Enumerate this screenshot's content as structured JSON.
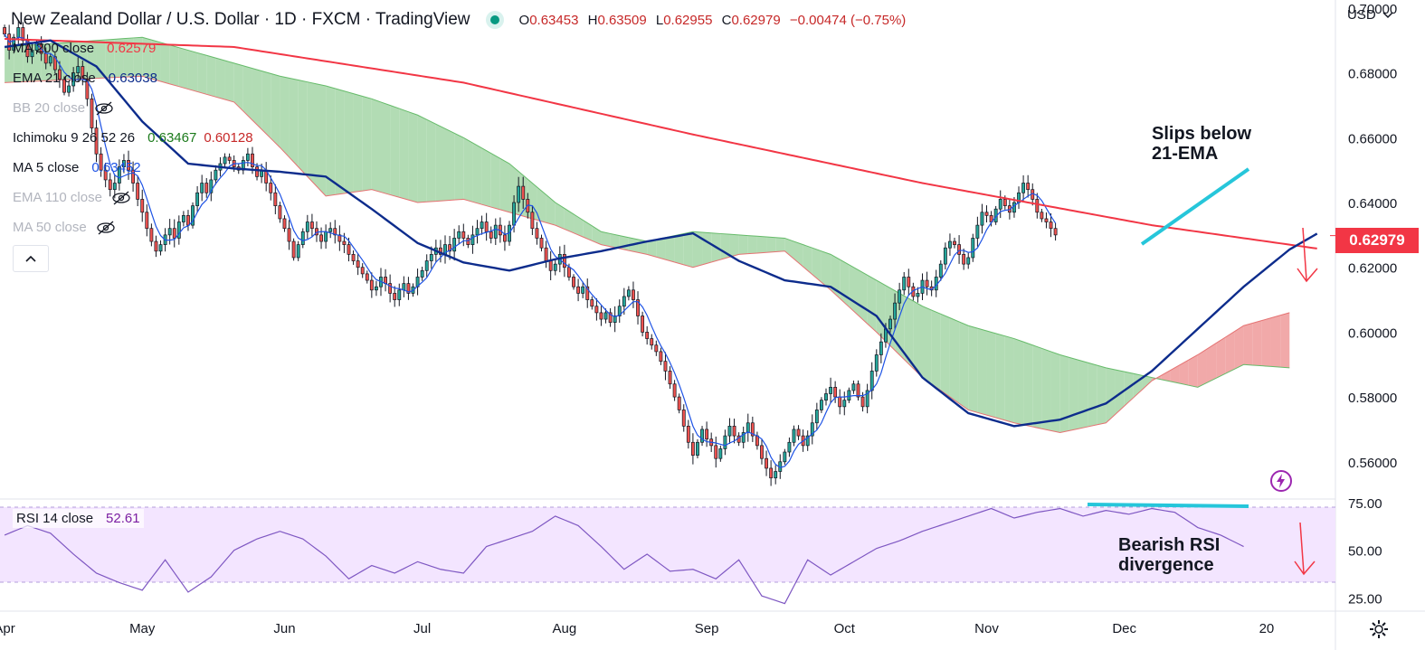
{
  "header": {
    "title": "New Zealand Dollar / U.S. Dollar · 1D · FXCM · TradingView",
    "ohlc": [
      {
        "key": "O",
        "value": "0.63453"
      },
      {
        "key": "H",
        "value": "0.63509"
      },
      {
        "key": "L",
        "value": "0.62955"
      },
      {
        "key": "C",
        "value": "0.62979"
      }
    ],
    "change": "−0.00474 (−0.75%)"
  },
  "currency_label": "USD",
  "legend": [
    {
      "label": "MA 200 close",
      "value": "0.62579",
      "color": "#f23645",
      "hidden": false
    },
    {
      "label": "EMA 21 close",
      "value": "0.63038",
      "color": "#0d2c8c",
      "hidden": false
    },
    {
      "label": "BB 20 close",
      "value": "",
      "color": "#b2b5be",
      "hidden": true
    },
    {
      "label": "Ichimoku 9 26 52 26",
      "value": "0.63467",
      "value2": "0.60128",
      "color": "#1b7a1b",
      "color2": "#c62828",
      "hidden": false
    },
    {
      "label": "MA 5 close",
      "value": "0.63452",
      "color": "#1e53e5",
      "hidden": false
    },
    {
      "label": "EMA 110 close",
      "value": "",
      "color": "#b2b5be",
      "hidden": true
    },
    {
      "label": "MA 50 close",
      "value": "",
      "color": "#b2b5be",
      "hidden": true
    }
  ],
  "last_price": "0.62979",
  "rsi_legend": {
    "label": "RSI 14 close",
    "value": "52.61"
  },
  "annotations": {
    "top": [
      "Slips below",
      "21-EMA"
    ],
    "bottom": [
      "Bearish RSI",
      "divergence"
    ]
  },
  "colors": {
    "up": "#26a69a",
    "down": "#ef5350",
    "ma200": "#f23645",
    "ema21": "#0d2c8c",
    "ma5": "#1e53e5",
    "cloud_bull": "#a5d6a7",
    "cloud_bear": "#ef9a9a",
    "rsi": "#7e57c2",
    "trendline": "#26c6da"
  },
  "chart_data": [
    {
      "type": "candlestick",
      "title": "New Zealand Dollar / U.S. Dollar · 1D · FXCM · TradingView",
      "y_ticks": [
        "0.70000",
        "0.68000",
        "0.66000",
        "0.64000",
        "0.62000",
        "0.60000",
        "0.58000",
        "0.56000"
      ],
      "ylim": [
        0.5485,
        0.7025
      ],
      "x_ticks": [
        "Apr",
        "May",
        "Jun",
        "Jul",
        "Aug",
        "Sep",
        "Oct",
        "Nov",
        "Dec",
        "20"
      ],
      "x_tick_days": [
        0,
        30,
        61,
        91,
        122,
        153,
        183,
        214,
        244,
        275
      ],
      "xlim_days": [
        -1,
        290
      ],
      "closes": [
        0.692,
        0.687,
        0.691,
        0.694,
        0.69,
        0.685,
        0.687,
        0.689,
        0.686,
        0.683,
        0.685,
        0.681,
        0.678,
        0.674,
        0.676,
        0.68,
        0.682,
        0.678,
        0.672,
        0.663,
        0.655,
        0.65,
        0.647,
        0.644,
        0.646,
        0.651,
        0.653,
        0.65,
        0.646,
        0.641,
        0.637,
        0.632,
        0.628,
        0.625,
        0.627,
        0.63,
        0.632,
        0.629,
        0.634,
        0.636,
        0.633,
        0.639,
        0.643,
        0.646,
        0.643,
        0.647,
        0.65,
        0.652,
        0.654,
        0.653,
        0.651,
        0.65,
        0.653,
        0.655,
        0.651,
        0.648,
        0.65,
        0.646,
        0.643,
        0.639,
        0.635,
        0.632,
        0.628,
        0.623,
        0.627,
        0.631,
        0.634,
        0.632,
        0.63,
        0.628,
        0.631,
        0.632,
        0.63,
        0.628,
        0.627,
        0.624,
        0.622,
        0.62,
        0.618,
        0.616,
        0.613,
        0.614,
        0.617,
        0.615,
        0.612,
        0.61,
        0.613,
        0.615,
        0.612,
        0.614,
        0.617,
        0.619,
        0.622,
        0.624,
        0.626,
        0.624,
        0.627,
        0.625,
        0.629,
        0.631,
        0.629,
        0.627,
        0.63,
        0.632,
        0.634,
        0.631,
        0.629,
        0.633,
        0.63,
        0.628,
        0.633,
        0.64,
        0.645,
        0.641,
        0.637,
        0.632,
        0.629,
        0.626,
        0.622,
        0.619,
        0.621,
        0.624,
        0.62,
        0.617,
        0.614,
        0.612,
        0.614,
        0.61,
        0.608,
        0.606,
        0.604,
        0.606,
        0.603,
        0.605,
        0.608,
        0.611,
        0.613,
        0.61,
        0.605,
        0.6,
        0.598,
        0.596,
        0.594,
        0.591,
        0.588,
        0.584,
        0.58,
        0.576,
        0.571,
        0.566,
        0.562,
        0.566,
        0.57,
        0.567,
        0.565,
        0.561,
        0.564,
        0.568,
        0.571,
        0.568,
        0.566,
        0.569,
        0.572,
        0.568,
        0.565,
        0.561,
        0.558,
        0.555,
        0.557,
        0.56,
        0.563,
        0.566,
        0.57,
        0.568,
        0.565,
        0.568,
        0.572,
        0.576,
        0.579,
        0.581,
        0.583,
        0.58,
        0.577,
        0.579,
        0.582,
        0.584,
        0.58,
        0.577,
        0.582,
        0.588,
        0.593,
        0.597,
        0.601,
        0.604,
        0.609,
        0.613,
        0.617,
        0.614,
        0.611,
        0.612,
        0.616,
        0.614,
        0.613,
        0.617,
        0.621,
        0.626,
        0.628,
        0.627,
        0.624,
        0.621,
        0.623,
        0.629,
        0.633,
        0.637,
        0.636,
        0.634,
        0.638,
        0.641,
        0.639,
        0.637,
        0.64,
        0.643,
        0.646,
        0.644,
        0.641,
        0.637,
        0.635,
        0.634,
        0.632,
        0.63
      ],
      "series": [
        {
          "name": "MA 200 close",
          "points": [
            [
              0,
              0.6905
            ],
            [
              50,
              0.688
            ],
            [
              100,
              0.677
            ],
            [
              150,
              0.661
            ],
            [
              200,
              0.646
            ],
            [
              250,
              0.633
            ],
            [
              286,
              0.6258
            ]
          ]
        },
        {
          "name": "EMA 21 close",
          "points": [
            [
              0,
              0.688
            ],
            [
              10,
              0.69
            ],
            [
              20,
              0.682
            ],
            [
              30,
              0.665
            ],
            [
              40,
              0.652
            ],
            [
              50,
              0.6505
            ],
            [
              60,
              0.6495
            ],
            [
              70,
              0.648
            ],
            [
              80,
              0.638
            ],
            [
              90,
              0.6275
            ],
            [
              100,
              0.6215
            ],
            [
              110,
              0.619
            ],
            [
              120,
              0.6225
            ],
            [
              130,
              0.625
            ],
            [
              140,
              0.628
            ],
            [
              150,
              0.6305
            ],
            [
              160,
              0.622
            ],
            [
              170,
              0.616
            ],
            [
              180,
              0.614
            ],
            [
              190,
              0.605
            ],
            [
              200,
              0.586
            ],
            [
              210,
              0.575
            ],
            [
              220,
              0.571
            ],
            [
              230,
              0.573
            ],
            [
              240,
              0.578
            ],
            [
              250,
              0.588
            ],
            [
              260,
              0.601
            ],
            [
              270,
              0.614
            ],
            [
              280,
              0.6255
            ],
            [
              286,
              0.6304
            ]
          ]
        }
      ],
      "ichimoku_cloud_bands": [
        [
          0,
          0.688,
          0.677
        ],
        [
          30,
          0.691,
          0.679
        ],
        [
          50,
          0.683,
          0.671
        ],
        [
          60,
          0.679,
          0.657
        ],
        [
          70,
          0.676,
          0.642
        ],
        [
          80,
          0.672,
          0.644
        ],
        [
          90,
          0.667,
          0.64
        ],
        [
          100,
          0.66,
          0.641
        ],
        [
          110,
          0.652,
          0.637
        ],
        [
          120,
          0.64,
          0.633
        ],
        [
          130,
          0.631,
          0.627
        ],
        [
          140,
          0.628,
          0.624
        ],
        [
          150,
          0.631,
          0.62
        ],
        [
          160,
          0.63,
          0.624
        ],
        [
          170,
          0.629,
          0.625
        ],
        [
          180,
          0.624,
          0.613
        ],
        [
          190,
          0.616,
          0.6
        ],
        [
          200,
          0.608,
          0.586
        ],
        [
          210,
          0.602,
          0.576
        ],
        [
          220,
          0.598,
          0.572
        ],
        [
          230,
          0.593,
          0.569
        ],
        [
          240,
          0.589,
          0.572
        ],
        [
          250,
          0.586,
          0.585
        ],
        [
          260,
          0.583,
          0.593
        ],
        [
          270,
          0.59,
          0.602
        ],
        [
          280,
          0.589,
          0.606
        ]
      ]
    },
    {
      "type": "line",
      "title": "RSI 14 close",
      "y_ticks": [
        "75.00",
        "50.00",
        "25.00"
      ],
      "ylim": [
        18,
        77
      ],
      "bands": [
        70,
        30
      ],
      "series": [
        {
          "name": "RSI 14 close",
          "points": [
            [
              0,
              58
            ],
            [
              5,
              63
            ],
            [
              10,
              59
            ],
            [
              15,
              48
            ],
            [
              20,
              38
            ],
            [
              25,
              33
            ],
            [
              30,
              29
            ],
            [
              35,
              45
            ],
            [
              40,
              28
            ],
            [
              45,
              36
            ],
            [
              50,
              50
            ],
            [
              55,
              56
            ],
            [
              60,
              60
            ],
            [
              65,
              56
            ],
            [
              70,
              47
            ],
            [
              75,
              35
            ],
            [
              80,
              42
            ],
            [
              85,
              38
            ],
            [
              90,
              44
            ],
            [
              95,
              40
            ],
            [
              100,
              38
            ],
            [
              105,
              52
            ],
            [
              110,
              56
            ],
            [
              115,
              60
            ],
            [
              120,
              68
            ],
            [
              125,
              63
            ],
            [
              130,
              52
            ],
            [
              135,
              40
            ],
            [
              140,
              48
            ],
            [
              145,
              39
            ],
            [
              150,
              40
            ],
            [
              155,
              35
            ],
            [
              160,
              45
            ],
            [
              165,
              26
            ],
            [
              170,
              22
            ],
            [
              175,
              45
            ],
            [
              180,
              37
            ],
            [
              185,
              44
            ],
            [
              190,
              51
            ],
            [
              195,
              55
            ],
            [
              200,
              60
            ],
            [
              205,
              64
            ],
            [
              210,
              68
            ],
            [
              215,
              72
            ],
            [
              220,
              67
            ],
            [
              225,
              70
            ],
            [
              230,
              72
            ],
            [
              235,
              68
            ],
            [
              240,
              71
            ],
            [
              245,
              69
            ],
            [
              250,
              72
            ],
            [
              255,
              70
            ],
            [
              260,
              62
            ],
            [
              265,
              58
            ],
            [
              270,
              52
            ]
          ]
        }
      ]
    }
  ]
}
